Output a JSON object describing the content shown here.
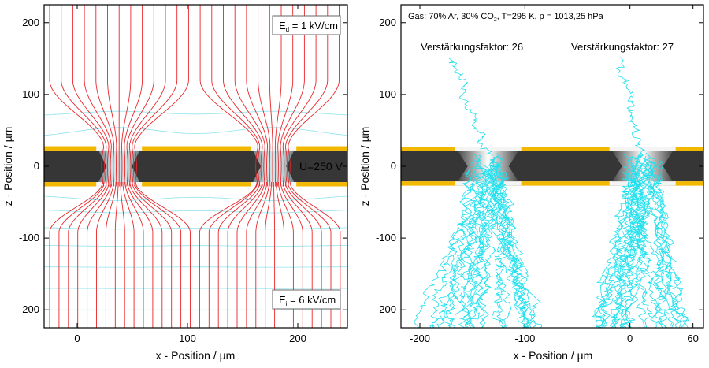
{
  "left_panel": {
    "x_axis_label": "x - Position / µm",
    "y_axis_label": "z - Position / µm",
    "x_ticks": [
      "0",
      "100",
      "200"
    ],
    "y_ticks": [
      "200",
      "100",
      "0",
      "-100",
      "-200"
    ],
    "drift_field_label": "E",
    "drift_field_sub": "d",
    "drift_field_value": " = 1 kV/cm",
    "induction_field_label": "E",
    "induction_field_sub": "i",
    "induction_field_value": " = 6 kV/cm",
    "voltage_label": "U=250 V",
    "xlim": [
      -30,
      245
    ],
    "ylim": [
      -225,
      225
    ]
  },
  "right_panel": {
    "x_axis_label": "x - Position / µm",
    "y_axis_label": "z - Position / µm",
    "x_ticks": [
      "-200",
      "-100",
      "0",
      "60"
    ],
    "y_ticks": [
      "200",
      "100",
      "0",
      "-100",
      "-200"
    ],
    "gas_label_a": "Gas: 70% Ar, 30% CO",
    "gas_label_sub": "2",
    "gas_label_b": ", T=295 K, p = 1013,25 hPa",
    "gain_left": "Verstärkungsfaktor: 26",
    "gain_right": "Verstärkungsfaktor: 27",
    "xlim": [
      -218,
      70
    ],
    "ylim": [
      -225,
      225
    ]
  },
  "colors": {
    "field_lines": "#e8262a",
    "equipotential": "#8fe3ee",
    "electron_tracks": "#1fe0ee",
    "copper": "#f2b800",
    "kapton": "#363636"
  }
}
